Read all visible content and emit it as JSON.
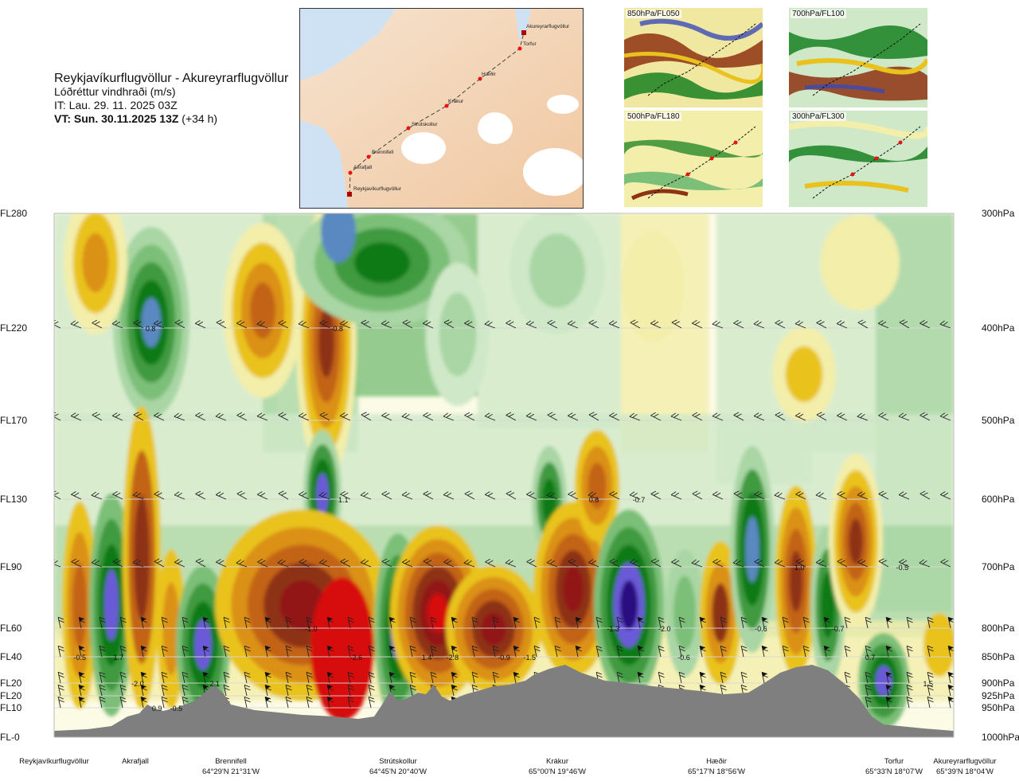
{
  "header": {
    "route": "Reykjavíkurflugvöllur - Akureyrarflugvöllur",
    "variable": "Lóðréttur vindhraði (m/s)",
    "issue_time": "IT: Lau. 29. 11. 2025 03Z",
    "valid_prefix": "VT: Sun. 30.11.2025 13Z",
    "valid_suffix": " (+34 h)"
  },
  "map": {
    "stations": [
      {
        "name": "Akureyrarflugvöllur"
      },
      {
        "name": "Torfur"
      },
      {
        "name": "Hæðir"
      },
      {
        "name": "Krákur"
      },
      {
        "name": "Strútskollur"
      },
      {
        "name": "Brennifell"
      },
      {
        "name": "Akrafjall"
      },
      {
        "name": "Reykjavíkurflugvöllur"
      }
    ]
  },
  "panels": [
    {
      "label": "850hPa/FL050"
    },
    {
      "label": "700hPa/FL100"
    },
    {
      "label": "500hPa/FL180"
    },
    {
      "label": "300hPa/FL300"
    }
  ],
  "chart_data": {
    "type": "heatmap",
    "title": "Lóðréttur vindhraði (m/s)",
    "left_axis_labels": [
      "FL280",
      "FL220",
      "FL170",
      "FL130",
      "FL90",
      "FL60",
      "FL40",
      "FL20",
      "FL20",
      "FL10",
      "FL-0"
    ],
    "right_axis_labels": [
      "300hPa",
      "400hPa",
      "500hPa",
      "600hPa",
      "700hPa",
      "800hPa",
      "850hPa",
      "900hPa",
      "925hPa",
      "950hPa",
      "1000hPa"
    ],
    "pressure_levels_hpa": [
      300,
      400,
      500,
      600,
      700,
      800,
      850,
      900,
      925,
      950,
      1000
    ],
    "x_locations": [
      {
        "name": "Reykjavíkurflugvöllur",
        "coord": ""
      },
      {
        "name": "Akrafjall",
        "coord": ""
      },
      {
        "name": "Brennifell",
        "coord": "64°29'N 21°31'W"
      },
      {
        "name": "Strútskollur",
        "coord": "64°45'N 20°40'W"
      },
      {
        "name": "Krákur",
        "coord": "65°00'N 19°46'W"
      },
      {
        "name": "Hæðir",
        "coord": "65°17'N 18°56'W"
      },
      {
        "name": "Torfur",
        "coord": "65°33'N 18°07'W"
      },
      {
        "name": "Akureyrarflugvöllur",
        "coord": "65°39'N 18°04'W"
      }
    ],
    "value_labels": [
      {
        "value": "0.8",
        "x_km": 15,
        "level_hpa": 400
      },
      {
        "value": "-0.8",
        "x_km": 44,
        "level_hpa": 400
      },
      {
        "value": "1.1",
        "x_km": 45,
        "level_hpa": 600
      },
      {
        "value": "0.6",
        "x_km": 84,
        "level_hpa": 600
      },
      {
        "value": "-0.7",
        "x_km": 91,
        "level_hpa": 600
      },
      {
        "value": "1.0",
        "x_km": 116,
        "level_hpa": 700
      },
      {
        "value": "-0.5",
        "x_km": 132,
        "level_hpa": 700
      },
      {
        "value": "-1.0",
        "x_km": 40,
        "level_hpa": 800
      },
      {
        "value": "-1.3",
        "x_km": 87,
        "level_hpa": 800
      },
      {
        "value": "-2.0",
        "x_km": 95,
        "level_hpa": 800
      },
      {
        "value": "-0.6",
        "x_km": 110,
        "level_hpa": 800
      },
      {
        "value": "-0.7",
        "x_km": 122,
        "level_hpa": 800
      },
      {
        "value": "-0.5",
        "x_km": 4,
        "level_hpa": 850
      },
      {
        "value": "1.7",
        "x_km": 10,
        "level_hpa": 850
      },
      {
        "value": "-2.6",
        "x_km": 47,
        "level_hpa": 850
      },
      {
        "value": "1.4",
        "x_km": 58,
        "level_hpa": 850
      },
      {
        "value": "-2.8",
        "x_km": 62,
        "level_hpa": 850
      },
      {
        "value": "-0.9",
        "x_km": 70,
        "level_hpa": 850
      },
      {
        "value": "-1.5",
        "x_km": 74,
        "level_hpa": 850
      },
      {
        "value": "-0.6",
        "x_km": 98,
        "level_hpa": 850
      },
      {
        "value": "0.7",
        "x_km": 127,
        "level_hpa": 850
      },
      {
        "value": "-2.0",
        "x_km": 13,
        "level_hpa": 900
      },
      {
        "value": "2.1",
        "x_km": 25,
        "level_hpa": 900
      },
      {
        "value": "1.5",
        "x_km": 136,
        "level_hpa": 900
      },
      {
        "value": "0.9",
        "x_km": 16,
        "level_hpa": 950
      },
      {
        "value": "-0.5",
        "x_km": 19,
        "level_hpa": 950
      }
    ],
    "colors": {
      "strong_up": "#2a0a80",
      "up_blue": "#6a5ad8",
      "up_steel": "#5a88c0",
      "up_green_dark": "#0b7a18",
      "up_green": "#3f9a40",
      "up_green_mid": "#7bbf78",
      "up_green_light": "#a9d6a4",
      "up_green_pale": "#cfe8c8",
      "neutral": "#fcfbe6",
      "down_pale": "#f3eeaa",
      "down_yellow": "#e9c21d",
      "down_orange": "#db9019",
      "down_orange_dark": "#c26416",
      "down_brown": "#8e3212",
      "down_darkred": "#921616",
      "down_red": "#d70c0c",
      "terrain": "#7f7f7f"
    }
  }
}
